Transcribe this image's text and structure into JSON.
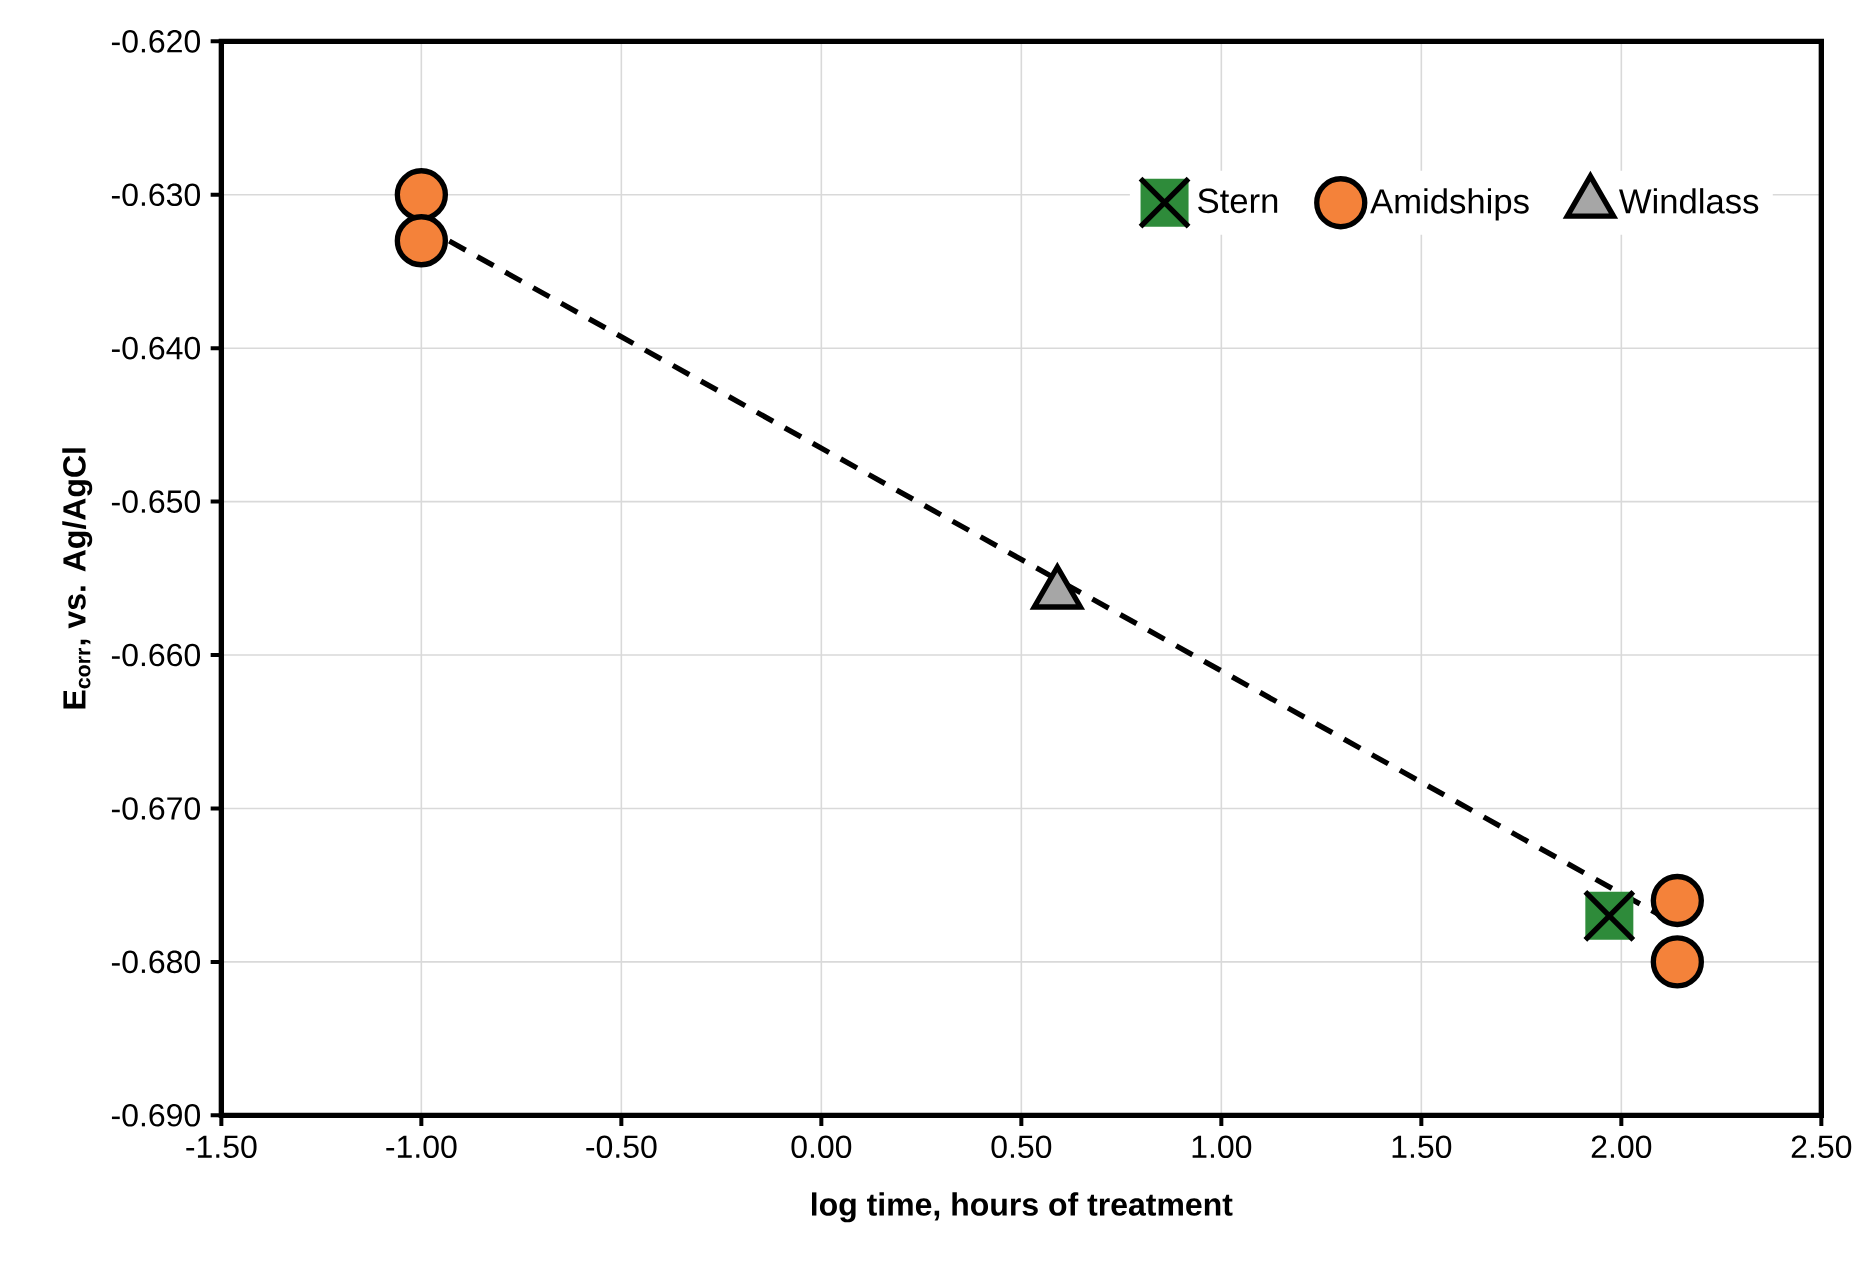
{
  "chart_data": {
    "type": "scatter",
    "xlabel": "log time, hours of treatment",
    "ylabel": "E$_{corr}$, vs. Ag/AgCl",
    "xlim": [
      -1.5,
      2.5
    ],
    "ylim": [
      -0.69,
      -0.62
    ],
    "xticks": [
      {
        "value": -1.5,
        "label": "-1.50"
      },
      {
        "value": -1.0,
        "label": "-1.00"
      },
      {
        "value": -0.5,
        "label": "-0.50"
      },
      {
        "value": 0,
        "label": "0.00"
      },
      {
        "value": 0.5,
        "label": "0.50"
      },
      {
        "value": 1.0,
        "label": "1.00"
      },
      {
        "value": 1.5,
        "label": "1.50"
      },
      {
        "value": 2.0,
        "label": "2.00"
      },
      {
        "value": 2.5,
        "label": "2.50"
      }
    ],
    "yticks": [
      {
        "value": -0.69,
        "label": "-0.690"
      },
      {
        "value": -0.68,
        "label": "-0.680"
      },
      {
        "value": -0.67,
        "label": "-0.670"
      },
      {
        "value": -0.66,
        "label": "-0.660"
      },
      {
        "value": -0.65,
        "label": "-0.650"
      },
      {
        "value": -0.64,
        "label": "-0.640"
      },
      {
        "value": -0.63,
        "label": "-0.630"
      },
      {
        "value": -0.62,
        "label": "-0.620"
      }
    ],
    "grid": true,
    "legend": "top right",
    "series": [
      {
        "type": "line",
        "color": "#000000",
        "line_style": "dashed",
        "marker": "none",
        "x": [
          -1.0,
          2.1
        ],
        "values": [
          -0.632,
          -0.677
        ]
      },
      {
        "name": "Stern",
        "color": "#2e8b3a",
        "marker": "square",
        "x": [
          1.97
        ],
        "values": [
          -0.677
        ]
      },
      {
        "name": "Amidships",
        "color": "#f4823a",
        "marker": "circle",
        "x": [
          -1.0,
          -1.0,
          2.14,
          2.14
        ],
        "values": [
          -0.63,
          -0.633,
          -0.676,
          -0.68
        ]
      },
      {
        "name": "Windlass",
        "color": "#a6a6a6",
        "marker": "triangle",
        "x": [
          0.59
        ],
        "values": [
          -0.656
        ]
      }
    ]
  }
}
